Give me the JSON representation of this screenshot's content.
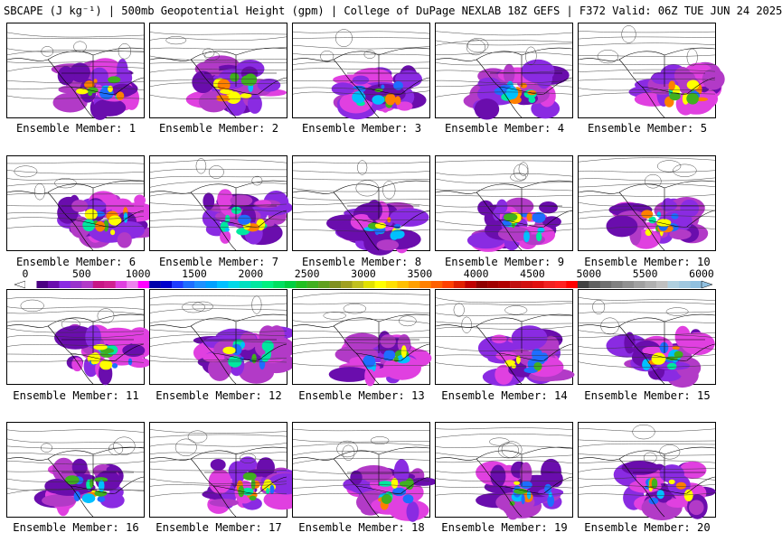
{
  "header": {
    "title": "SBCAPE (J kg⁻¹) | 500mb Geopotential Height (gpm) | College of DuPage NEXLAB 18Z GEFS | F372 Valid: 06Z TUE JUN 24 2025"
  },
  "members": [
    {
      "label": "Ensemble Member: 1"
    },
    {
      "label": "Ensemble Member: 2"
    },
    {
      "label": "Ensemble Member: 3"
    },
    {
      "label": "Ensemble Member: 4"
    },
    {
      "label": "Ensemble Member: 5"
    },
    {
      "label": "Ensemble Member: 6"
    },
    {
      "label": "Ensemble Member: 7"
    },
    {
      "label": "Ensemble Member: 8"
    },
    {
      "label": "Ensemble Member: 9"
    },
    {
      "label": "Ensemble Member: 10"
    },
    {
      "label": "Ensemble Member: 11"
    },
    {
      "label": "Ensemble Member: 12"
    },
    {
      "label": "Ensemble Member: 13"
    },
    {
      "label": "Ensemble Member: 14"
    },
    {
      "label": "Ensemble Member: 15"
    },
    {
      "label": "Ensemble Member: 16"
    },
    {
      "label": "Ensemble Member: 17"
    },
    {
      "label": "Ensemble Member: 18"
    },
    {
      "label": "Ensemble Member: 19"
    },
    {
      "label": "Ensemble Member: 20"
    }
  ],
  "colorbar": {
    "tick_labels": [
      "0",
      "500",
      "1000",
      "1500",
      "2000",
      "2500",
      "3000",
      "3500",
      "4000",
      "4500",
      "5000",
      "5500",
      "6000"
    ],
    "min": 0,
    "max": 6000,
    "step": 100,
    "colors": [
      "#ffffff",
      "#4b0082",
      "#6a0dad",
      "#8a2be2",
      "#9932cc",
      "#b23ac7",
      "#c71585",
      "#d02090",
      "#e040e0",
      "#ee82ee",
      "#ff00ff",
      "#0000aa",
      "#0000cd",
      "#1e3cff",
      "#1e6eff",
      "#1e90ff",
      "#00a0ff",
      "#00c0ff",
      "#00d8e8",
      "#00e0c0",
      "#00e8a0",
      "#00f080",
      "#00e060",
      "#00d040",
      "#20c020",
      "#40b020",
      "#60a020",
      "#809020",
      "#a0a020",
      "#c0c020",
      "#e0e000",
      "#ffff00",
      "#ffe000",
      "#ffc000",
      "#ffa000",
      "#ff8000",
      "#ff6000",
      "#ff4000",
      "#e02000",
      "#c00000",
      "#900000",
      "#a00000",
      "#b00000",
      "#c01010",
      "#d01010",
      "#e01010",
      "#f02020",
      "#ff2020",
      "#ff0000",
      "#404040",
      "#606060",
      "#707070",
      "#808080",
      "#909090",
      "#a0a0a0",
      "#b0b0b0",
      "#c0c0c0",
      "#b0d0e0",
      "#a0c8e0",
      "#90c0e0"
    ]
  }
}
